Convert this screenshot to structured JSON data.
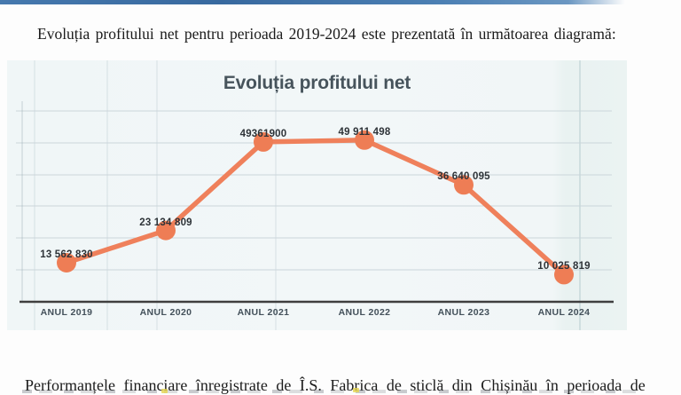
{
  "page": {
    "top_paragraph": "Evoluția profitului net pentru perioada 2019-2024 este prezentată în următoarea diagramă:",
    "bottom_paragraph": "Performanțele financiare înregistrate de Î.S. Fabrica de sticlă din Chișinău în perioada de"
  },
  "chart_data": {
    "type": "line",
    "title": "Evoluția profitului net",
    "categories": [
      "ANUL  2019",
      "ANUL 2020",
      "ANUL 2021",
      "ANUL 2022",
      "ANUL 2023",
      "ANUL 2024"
    ],
    "values": [
      13562830,
      23134809,
      49361900,
      49911498,
      36640095,
      10025819
    ],
    "data_labels": [
      "13 562 830",
      "23 134 809",
      "49361900",
      "49 911 498",
      "36 640 095",
      "10 025 819"
    ],
    "xlabel": "",
    "ylabel": "",
    "ylim": [
      0,
      60000000
    ],
    "grid": "horizontal",
    "legend": "none",
    "colors": {
      "line": "#EF805B",
      "marker": "#EE7D55",
      "title": "#47545C",
      "data_label": "#2E3338",
      "axis_line": "#3F3F3F",
      "gridline": "#CBD6DA"
    }
  }
}
